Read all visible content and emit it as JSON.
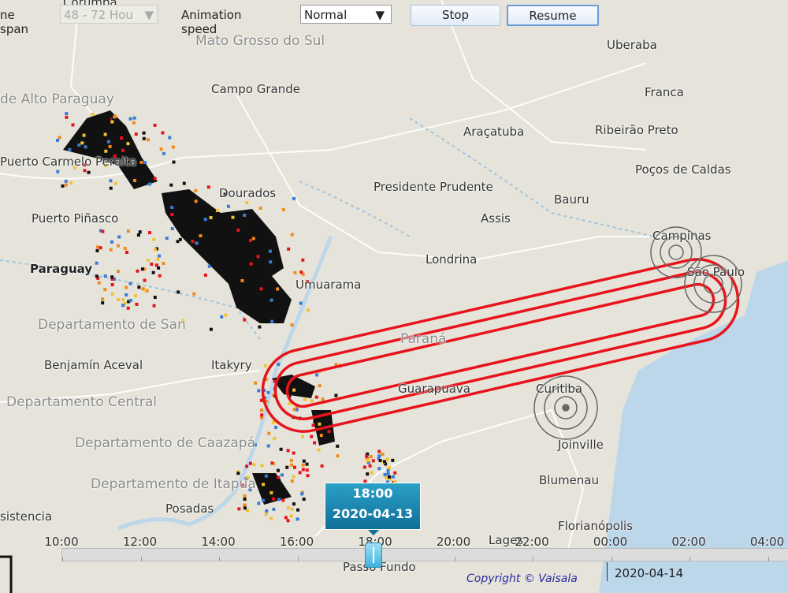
{
  "controls": {
    "time_span_label": "ne span",
    "time_span_value": "48 - 72 Hou",
    "animation_speed_label": "Animation speed",
    "animation_speed_value": "Normal",
    "stop_label": "Stop",
    "resume_label": "Resume"
  },
  "map": {
    "colors": {
      "land": "#e6e4da",
      "water": "#bcd6ea",
      "track": "#e8141c",
      "storm": "#111111",
      "range_rings": "#666666"
    },
    "labels": [
      "Corumba",
      "Mato Grosso do Sul",
      "Uberaba",
      "de Alto Paraguay",
      "Campo Grande",
      "Franca",
      "Araçatuba",
      "Ribeirão Preto",
      "Puerto Carmelo Peralta",
      "Poços de Caldas",
      "Dourados",
      "Presidente Prudente",
      "Bauru",
      "Puerto Piñasco",
      "Assis",
      "Campinas",
      "Londrina",
      "Paraguay",
      "São Paulo",
      "Umuarama",
      "Departamento de San",
      "Paraná",
      "Benjamín Aceval",
      "Itakyry",
      "Guarapuava",
      "Curitiba",
      "Departamento Central",
      "Departamento de Caazapá",
      "Joinville",
      "Departamento de Itapúa",
      "Blumenau",
      "Posadas",
      "sistencia",
      "Florianópolis",
      "Lages",
      "Passo Fundo"
    ],
    "copyright": "Copyright © Vaisala"
  },
  "timeline": {
    "ticks": [
      "10:00",
      "12:00",
      "14:00",
      "16:00",
      "18:00",
      "20:00",
      "22:00",
      "00:00",
      "02:00",
      "04:00"
    ],
    "current_time": "18:00",
    "current_date": "2020-04-13",
    "next_day_label": "2020-04-14"
  }
}
